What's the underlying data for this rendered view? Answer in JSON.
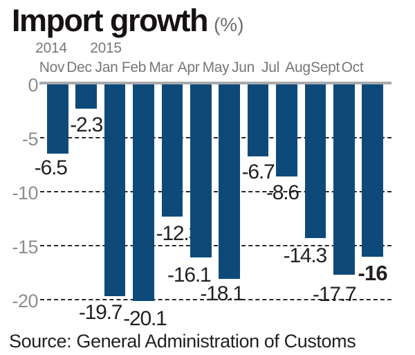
{
  "title": {
    "text": "Import growth",
    "unit": "(%)"
  },
  "source": "Source: General Administration of Customs",
  "chart_data": {
    "type": "bar",
    "categories": [
      "Nov",
      "Dec",
      "Jan",
      "Feb",
      "Mar",
      "Apr",
      "May",
      "Jun",
      "Jul",
      "Aug",
      "Sept",
      "Oct"
    ],
    "values": [
      -6.5,
      -2.3,
      -19.7,
      -20.1,
      -12.3,
      -16.1,
      -18.1,
      -6.7,
      -8.6,
      -14.3,
      -17.7,
      -16
    ],
    "data_labels": [
      "-6.5",
      "-2.3",
      "-19.7",
      "-20.1",
      "-12.3",
      "-16.1",
      "-18.1",
      "-6.7",
      "-8.6",
      "-14.3",
      "-17.7",
      "-16"
    ],
    "emphasized_label_index": 11,
    "year_markers": [
      {
        "label": "2014",
        "month_index": 0
      },
      {
        "label": "2015",
        "month_index": 2
      }
    ],
    "y_ticks": [
      "0",
      "-5",
      "-10",
      "-15",
      "-20"
    ],
    "y_tick_values": [
      0,
      -5,
      -10,
      -15,
      -20
    ],
    "ylim": [
      -20,
      0
    ],
    "title": "Import growth (%)",
    "xlabel": "",
    "ylabel": "",
    "grid": "horizontal-dashed",
    "legend": "none",
    "bar_color": "#0d4a7a",
    "zero_line_color": "#a7a9ac",
    "gridline_color": "#2a2627",
    "axis_label_color": "#8b8d8f",
    "month_label_color": "#76777a",
    "value_label_color": "#231f20"
  }
}
